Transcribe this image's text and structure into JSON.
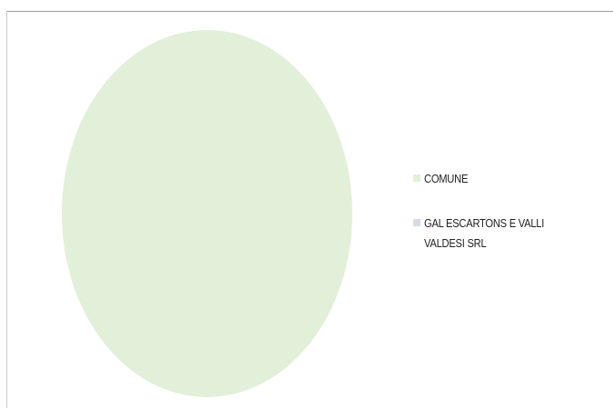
{
  "chart_data": {
    "type": "pie",
    "title": "",
    "categories": [
      "COMUNE",
      "GAL ESCARTONS E VALLI VALDESI SRL"
    ],
    "values": [
      100,
      0
    ],
    "colors": [
      "#e2efd9",
      "#d6dce4"
    ],
    "legend_position": "right"
  }
}
